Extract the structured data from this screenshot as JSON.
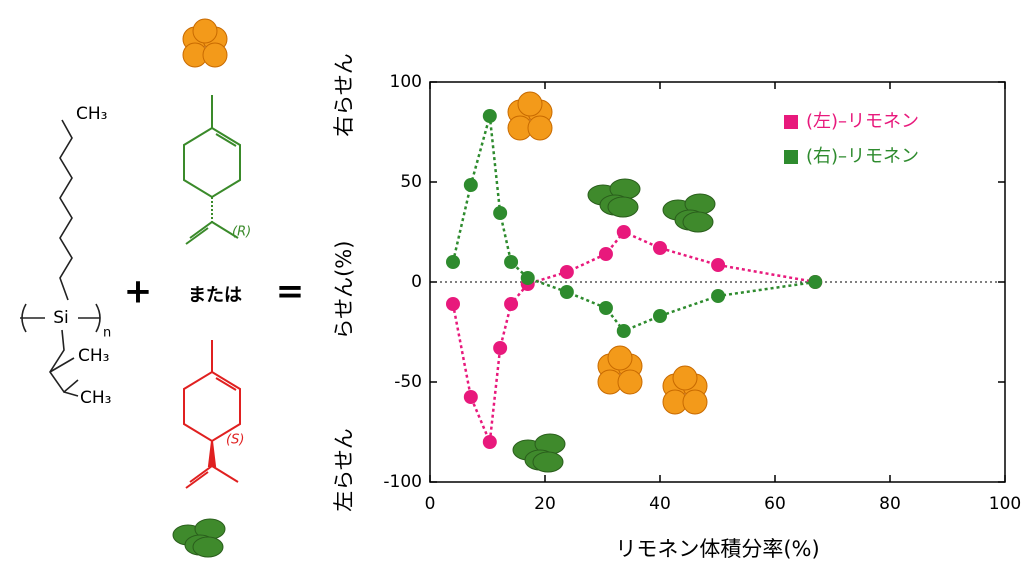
{
  "chart_data": {
    "type": "line",
    "x_label": "リモネン体積分率(%)",
    "y_labels": {
      "top": "右らせん",
      "middle": "らせん(%)",
      "bottom": "左らせん"
    },
    "xlim": [
      0,
      100
    ],
    "xticks": [
      0,
      20,
      40,
      60,
      80,
      100
    ],
    "ylim": [
      -100,
      100
    ],
    "yticks": [
      -100,
      -50,
      0,
      50,
      100
    ],
    "zero_line": true,
    "legend": "top-right",
    "series": [
      {
        "name": "(左)–リモネン",
        "color": "#e8197c",
        "x": [
          4.0,
          7.1,
          10.4,
          12.2,
          14.1,
          17,
          23.8,
          30.6,
          33.7,
          40,
          50.1,
          67
        ],
        "values": [
          -11,
          -57.5,
          -80,
          -33,
          -11,
          -1,
          5,
          14,
          25,
          17,
          8.5,
          0
        ]
      },
      {
        "name": "(右)–リモネン",
        "color": "#2e8b2e",
        "x": [
          4.0,
          7.1,
          10.4,
          12.2,
          14.1,
          17,
          23.8,
          30.6,
          33.7,
          40,
          50.1,
          67
        ],
        "values": [
          10,
          48.5,
          83,
          34.5,
          10,
          2,
          -5,
          -13,
          -24.5,
          -17,
          -7,
          0
        ]
      }
    ]
  },
  "structures": {
    "polymer_ch3_top": "CH₃",
    "si": "Si",
    "n": "n",
    "ch3_a": "CH₃",
    "ch3_b": "CH₃",
    "plus": "+",
    "or": "または",
    "equals": "=",
    "r_label": "(R)",
    "s_label": "(S)"
  }
}
